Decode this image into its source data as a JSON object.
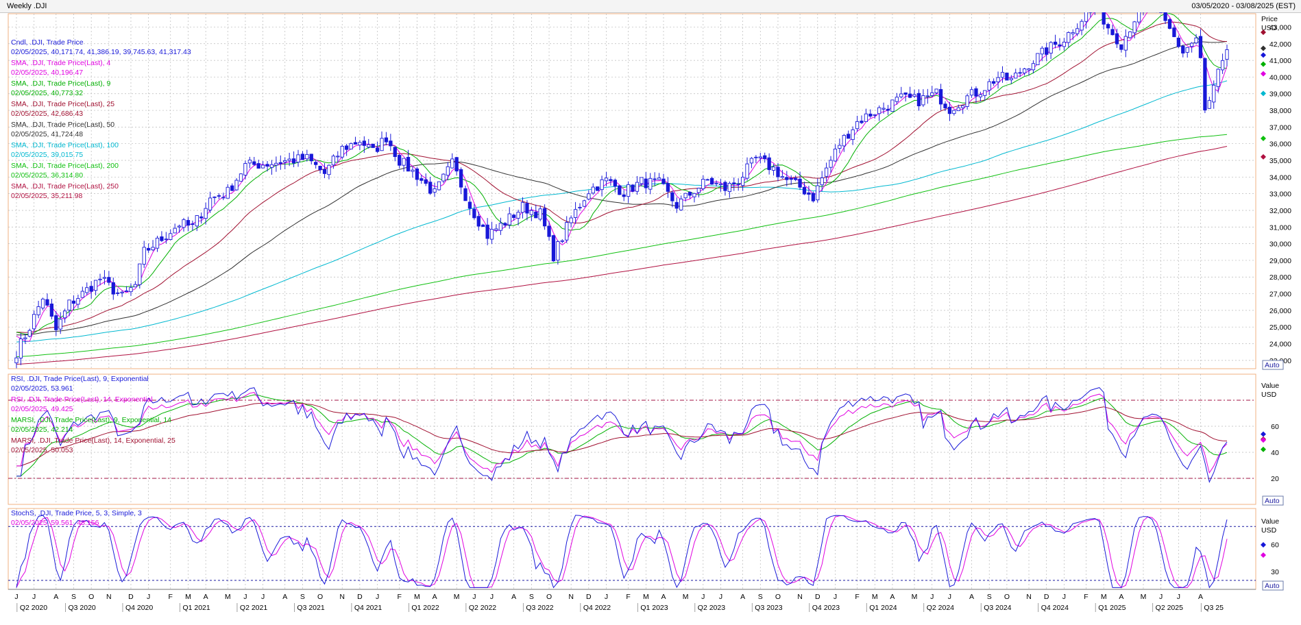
{
  "window": {
    "title_left": "Weekly .DJI",
    "title_right": "03/05/2020 - 03/08/2025 (EST)"
  },
  "colors": {
    "candle": "#1818d8",
    "sma4": "#e000e0",
    "sma9": "#00b000",
    "sma25": "#a01030",
    "sma50": "#303030",
    "sma100": "#00b8d0",
    "sma200": "#10c010",
    "sma250": "#b01040",
    "rsi9": "#1818d8",
    "rsi14": "#e000e0",
    "marsi9": "#00b000",
    "marsi14": "#a01030",
    "stoch_k": "#1818d8",
    "stoch_d": "#e000e0",
    "grid": "#b8b8b8",
    "panel_border": "#f0b080"
  },
  "chart_data": [
    {
      "type": "candlestick",
      "panel": "price",
      "ylim": [
        22500,
        43800
      ],
      "y_axis_title": [
        "Price",
        "USD"
      ],
      "yticks": [
        23000,
        24000,
        25000,
        26000,
        27000,
        28000,
        29000,
        30000,
        31000,
        32000,
        33000,
        34000,
        35000,
        36000,
        37000,
        38000,
        39000,
        40000,
        41000,
        42000,
        43000
      ],
      "ytick_labels": [
        "23,000",
        "24,000",
        "25,000",
        "26,000",
        "27,000",
        "28,000",
        "29,000",
        "30,000",
        "31,000",
        "32,000",
        "33,000",
        "34,000",
        "35,000",
        "36,000",
        "37,000",
        "38,000",
        "39,000",
        "40,000",
        "41,000",
        "42,000",
        "43,000"
      ],
      "auto_label": "Auto",
      "close_anchors": [
        [
          0,
          23500
        ],
        [
          3,
          25000
        ],
        [
          6,
          26800
        ],
        [
          9,
          24800
        ],
        [
          12,
          26400
        ],
        [
          15,
          27000
        ],
        [
          19,
          27900
        ],
        [
          24,
          26800
        ],
        [
          27,
          27500
        ],
        [
          29,
          29500
        ],
        [
          33,
          30300
        ],
        [
          37,
          31200
        ],
        [
          40,
          31000
        ],
        [
          44,
          32700
        ],
        [
          48,
          33100
        ],
        [
          52,
          34700
        ],
        [
          57,
          34800
        ],
        [
          62,
          35000
        ],
        [
          66,
          35100
        ],
        [
          70,
          34200
        ],
        [
          74,
          35700
        ],
        [
          78,
          36200
        ],
        [
          81,
          35500
        ],
        [
          84,
          36400
        ],
        [
          87,
          35000
        ],
        [
          91,
          34100
        ],
        [
          95,
          33000
        ],
        [
          99,
          34800
        ],
        [
          103,
          32300
        ],
        [
          107,
          30500
        ],
        [
          111,
          31300
        ],
        [
          115,
          32200
        ],
        [
          119,
          31800
        ],
        [
          122,
          29300
        ],
        [
          126,
          31500
        ],
        [
          130,
          33200
        ],
        [
          134,
          33800
        ],
        [
          138,
          33100
        ],
        [
          142,
          33700
        ],
        [
          146,
          33600
        ],
        [
          150,
          32300
        ],
        [
          154,
          33200
        ],
        [
          157,
          33800
        ],
        [
          161,
          33300
        ],
        [
          164,
          33800
        ],
        [
          168,
          35100
        ],
        [
          172,
          34500
        ],
        [
          175,
          33800
        ],
        [
          178,
          33400
        ],
        [
          181,
          32800
        ],
        [
          184,
          34500
        ],
        [
          187,
          36000
        ],
        [
          191,
          37300
        ],
        [
          194,
          37800
        ],
        [
          198,
          38300
        ],
        [
          201,
          38700
        ],
        [
          205,
          38600
        ],
        [
          209,
          39000
        ],
        [
          212,
          38100
        ],
        [
          216,
          38800
        ],
        [
          219,
          39200
        ],
        [
          223,
          40000
        ],
        [
          226,
          39800
        ],
        [
          230,
          40800
        ],
        [
          234,
          41600
        ],
        [
          238,
          42300
        ],
        [
          241,
          43200
        ],
        [
          245,
          44400
        ],
        [
          248,
          43000
        ],
        [
          251,
          42000
        ],
        [
          254,
          43500
        ],
        [
          258,
          44300
        ],
        [
          262,
          42800
        ],
        [
          265,
          41500
        ],
        [
          268,
          42300
        ],
        [
          269,
          41000
        ],
        [
          270,
          37900
        ],
        [
          271,
          38500
        ],
        [
          273,
          40200
        ],
        [
          275,
          41300
        ]
      ],
      "series": [
        {
          "name": "Cndl, .DJI, Trade Price",
          "kind": "candles",
          "last_label": "02/05/2025, 40,171.74, 41,386.19, 39,745.63, 41,317.43"
        },
        {
          "name": "SMA, .DJI, Trade Price(Last),  4",
          "period": 4,
          "color_key": "sma4",
          "last_label": "02/05/2025, 40,196.47"
        },
        {
          "name": "SMA, .DJI, Trade Price(Last),  9",
          "period": 9,
          "color_key": "sma9",
          "last_label": "02/05/2025, 40,773.32"
        },
        {
          "name": "SMA, .DJI, Trade Price(Last),  25",
          "period": 25,
          "color_key": "sma25",
          "last_label": "02/05/2025, 42,686.43"
        },
        {
          "name": "SMA, .DJI, Trade Price(Last),  50",
          "period": 50,
          "color_key": "sma50",
          "last_label": "02/05/2025, 41,724.48"
        },
        {
          "name": "SMA, .DJI, Trade Price(Last),  100",
          "period": 100,
          "color_key": "sma100",
          "last_label": "02/05/2025, 39,015.75"
        },
        {
          "name": "SMA, .DJI, Trade Price(Last),  200",
          "period": 200,
          "color_key": "sma200",
          "last_label": "02/05/2025, 36,314.80"
        },
        {
          "name": "SMA, .DJI, Trade Price(Last),  250",
          "period": 250,
          "color_key": "sma250",
          "last_label": "02/05/2025, 35,211.98"
        }
      ],
      "marker_values": [
        42686,
        41724,
        41317,
        40773,
        40196,
        39016,
        36315,
        35212
      ]
    },
    {
      "type": "line",
      "panel": "rsi",
      "ylim": [
        0,
        100
      ],
      "y_axis_title": [
        "Value",
        "USD"
      ],
      "yticks": [
        20,
        40,
        60
      ],
      "ytick_labels": [
        "20",
        "40",
        "60"
      ],
      "reference_lines": [
        20,
        80
      ],
      "auto_label": "Auto",
      "series": [
        {
          "name": "RSI, .DJI, Trade Price(Last),  9, Exponential",
          "color_key": "rsi9",
          "last_label": "02/05/2025, 53.961"
        },
        {
          "name": "RSI, .DJI, Trade Price(Last),  14, Exponential",
          "color_key": "rsi14",
          "last_label": "02/05/2025, 49.425"
        },
        {
          "name": "MARSI, .DJI, Trade Price(Last),  9, Exponential, 14",
          "color_key": "marsi9",
          "last_label": "02/05/2025, 42.214"
        },
        {
          "name": "MARSI, .DJI, Trade Price(Last),  14, Exponential, 25",
          "color_key": "marsi14",
          "last_label": "02/05/2025, 50.053"
        }
      ],
      "marker_values": [
        53.961,
        50.053,
        49.425,
        42.214
      ]
    },
    {
      "type": "line",
      "panel": "stoch",
      "ylim": [
        10,
        100
      ],
      "y_axis_title": [
        "Value",
        "USD"
      ],
      "yticks": [
        30,
        60
      ],
      "ytick_labels": [
        "30",
        "60"
      ],
      "reference_lines": [
        20,
        80
      ],
      "auto_label": "Auto",
      "series": [
        {
          "name": "StochS, .DJI, Trade Price,  5, 3, Simple, 3",
          "color_key": "stoch_k",
          "last_label": "02/05/2025, 59.561, 48.156"
        }
      ],
      "marker_values": [
        59.561,
        48.156
      ]
    }
  ],
  "x_axis": {
    "months": [
      {
        "w": 0,
        "l": "J"
      },
      {
        "w": 4,
        "l": "J"
      },
      {
        "w": 9,
        "l": "A"
      },
      {
        "w": 13,
        "l": "S"
      },
      {
        "w": 17,
        "l": "O"
      },
      {
        "w": 21,
        "l": "N"
      },
      {
        "w": 26,
        "l": "D"
      },
      {
        "w": 30,
        "l": "J"
      },
      {
        "w": 35,
        "l": "F"
      },
      {
        "w": 39,
        "l": "M"
      },
      {
        "w": 43,
        "l": "A"
      },
      {
        "w": 48,
        "l": "M"
      },
      {
        "w": 52,
        "l": "J"
      },
      {
        "w": 56,
        "l": "J"
      },
      {
        "w": 61,
        "l": "A"
      },
      {
        "w": 65,
        "l": "S"
      },
      {
        "w": 69,
        "l": "O"
      },
      {
        "w": 74,
        "l": "N"
      },
      {
        "w": 78,
        "l": "D"
      },
      {
        "w": 82,
        "l": "J"
      },
      {
        "w": 87,
        "l": "F"
      },
      {
        "w": 91,
        "l": "M"
      },
      {
        "w": 95,
        "l": "A"
      },
      {
        "w": 100,
        "l": "M"
      },
      {
        "w": 104,
        "l": "J"
      },
      {
        "w": 108,
        "l": "J"
      },
      {
        "w": 113,
        "l": "A"
      },
      {
        "w": 117,
        "l": "S"
      },
      {
        "w": 121,
        "l": "O"
      },
      {
        "w": 126,
        "l": "N"
      },
      {
        "w": 130,
        "l": "D"
      },
      {
        "w": 134,
        "l": "J"
      },
      {
        "w": 139,
        "l": "F"
      },
      {
        "w": 143,
        "l": "M"
      },
      {
        "w": 147,
        "l": "A"
      },
      {
        "w": 152,
        "l": "M"
      },
      {
        "w": 156,
        "l": "J"
      },
      {
        "w": 160,
        "l": "J"
      },
      {
        "w": 165,
        "l": "A"
      },
      {
        "w": 169,
        "l": "S"
      },
      {
        "w": 173,
        "l": "O"
      },
      {
        "w": 178,
        "l": "N"
      },
      {
        "w": 182,
        "l": "D"
      },
      {
        "w": 186,
        "l": "J"
      },
      {
        "w": 191,
        "l": "F"
      },
      {
        "w": 195,
        "l": "M"
      },
      {
        "w": 199,
        "l": "A"
      },
      {
        "w": 204,
        "l": "M"
      },
      {
        "w": 208,
        "l": "J"
      },
      {
        "w": 212,
        "l": "J"
      },
      {
        "w": 217,
        "l": "A"
      },
      {
        "w": 221,
        "l": "S"
      },
      {
        "w": 225,
        "l": "O"
      },
      {
        "w": 230,
        "l": "N"
      },
      {
        "w": 234,
        "l": "D"
      },
      {
        "w": 238,
        "l": "J"
      },
      {
        "w": 243,
        "l": "F"
      },
      {
        "w": 247,
        "l": "M"
      },
      {
        "w": 251,
        "l": "A"
      },
      {
        "w": 256,
        "l": "M"
      },
      {
        "w": 260,
        "l": "J"
      },
      {
        "w": 264,
        "l": "J"
      },
      {
        "w": 269,
        "l": "A"
      }
    ],
    "quarters": [
      {
        "w": 2,
        "l": "Q2 2020"
      },
      {
        "w": 13,
        "l": "Q3 2020"
      },
      {
        "w": 26,
        "l": "Q4 2020"
      },
      {
        "w": 39,
        "l": "Q1 2021"
      },
      {
        "w": 52,
        "l": "Q2 2021"
      },
      {
        "w": 65,
        "l": "Q3 2021"
      },
      {
        "w": 78,
        "l": "Q4 2021"
      },
      {
        "w": 91,
        "l": "Q1 2022"
      },
      {
        "w": 104,
        "l": "Q2 2022"
      },
      {
        "w": 117,
        "l": "Q3 2022"
      },
      {
        "w": 130,
        "l": "Q4 2022"
      },
      {
        "w": 143,
        "l": "Q1 2023"
      },
      {
        "w": 156,
        "l": "Q2 2023"
      },
      {
        "w": 169,
        "l": "Q3 2023"
      },
      {
        "w": 182,
        "l": "Q4 2023"
      },
      {
        "w": 195,
        "l": "Q1 2024"
      },
      {
        "w": 208,
        "l": "Q2 2024"
      },
      {
        "w": 221,
        "l": "Q3 2024"
      },
      {
        "w": 234,
        "l": "Q4 2024"
      },
      {
        "w": 247,
        "l": "Q1 2025"
      },
      {
        "w": 260,
        "l": "Q2 2025"
      },
      {
        "w": 271,
        "l": "Q3 25"
      }
    ]
  }
}
